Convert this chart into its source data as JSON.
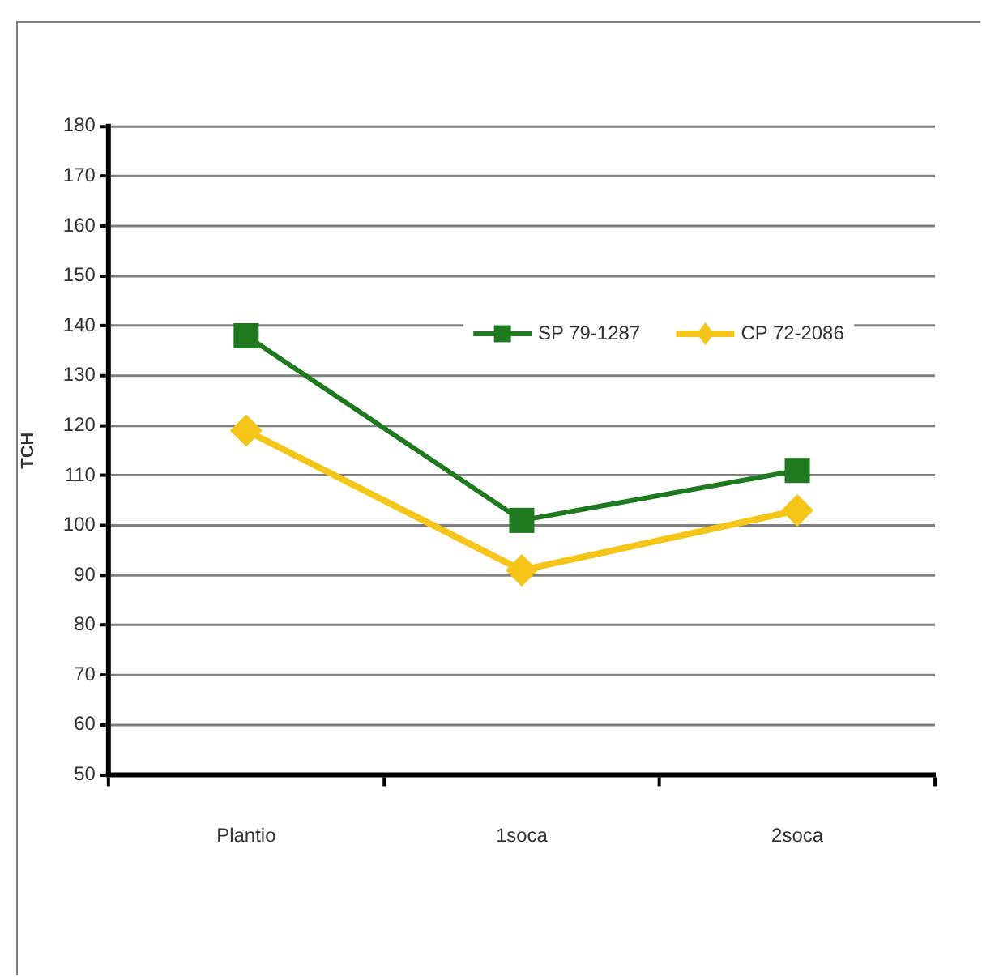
{
  "chart_data": {
    "type": "line",
    "ylabel": "TCH",
    "categories": [
      "Plantio",
      "1soca",
      "2soca"
    ],
    "series": [
      {
        "name": "SP 79-1287",
        "color": "#1f7a1f",
        "values": [
          138,
          101,
          111
        ],
        "marker": "square"
      },
      {
        "name": "CP 72-2086",
        "color": "#f5c518",
        "values": [
          119,
          91,
          103
        ],
        "marker": "diamond"
      }
    ],
    "ylim": [
      50,
      180
    ],
    "yticks": [
      50,
      60,
      70,
      80,
      90,
      100,
      110,
      120,
      130,
      140,
      150,
      160,
      170,
      180
    ],
    "grid": "y",
    "legend": "top right",
    "line_style": "solid"
  }
}
